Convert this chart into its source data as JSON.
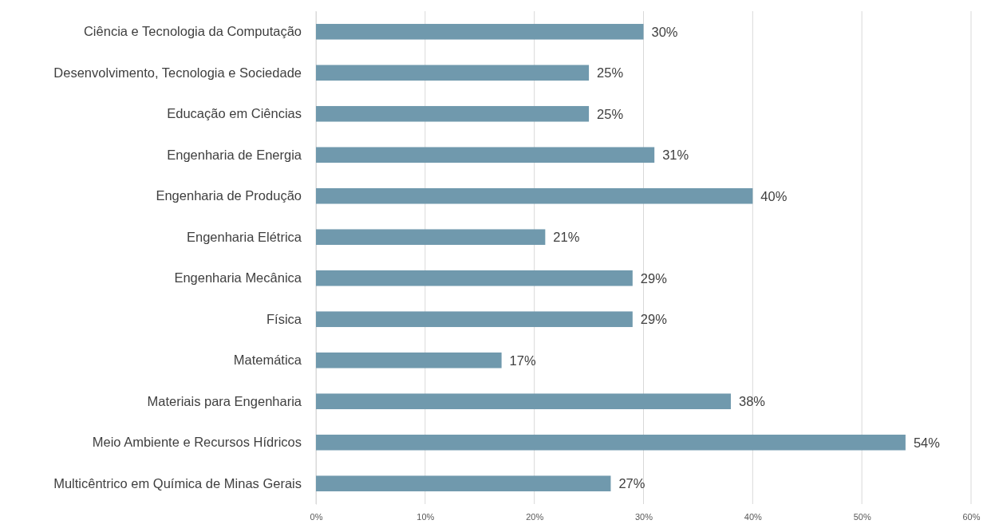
{
  "chart_data": {
    "type": "bar",
    "orientation": "horizontal",
    "categories": [
      "Ciência e Tecnologia da Computação",
      "Desenvolvimento, Tecnologia e Sociedade",
      "Educação em Ciências",
      "Engenharia de Energia",
      "Engenharia de Produção",
      "Engenharia Elétrica",
      "Engenharia Mecânica",
      "Física",
      "Matemática",
      "Materiais para Engenharia",
      "Meio Ambiente e Recursos Hídricos",
      "Multicêntrico em Química de Minas Gerais"
    ],
    "values": [
      30,
      25,
      25,
      31,
      40,
      21,
      29,
      29,
      17,
      38,
      54,
      27
    ],
    "color": "#7099ad",
    "xlim": [
      0,
      60
    ],
    "xticks": [
      {
        "value": 0,
        "label": "0%"
      },
      {
        "value": 10,
        "label": "10%"
      },
      {
        "value": 20,
        "label": "20%"
      },
      {
        "value": 30,
        "label": "30%"
      },
      {
        "value": 40,
        "label": "40%"
      },
      {
        "value": 50,
        "label": "50%"
      },
      {
        "value": 60,
        "label": "60%"
      }
    ],
    "value_labels": [
      "30%",
      "25%",
      "25%",
      "31%",
      "40%",
      "21%",
      "29%",
      "29%",
      "17%",
      "38%",
      "54%",
      "27%"
    ],
    "grid": "x"
  }
}
